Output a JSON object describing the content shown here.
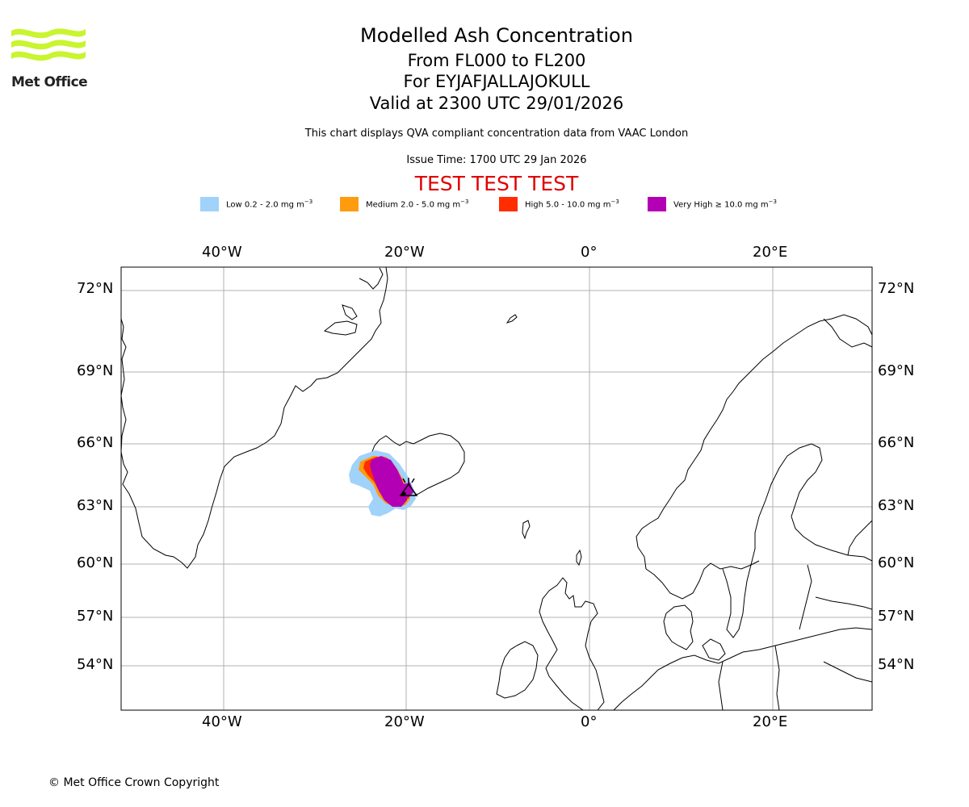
{
  "logo": {
    "text": "Met Office",
    "color": "#c8f52e"
  },
  "title": {
    "line1": "Modelled Ash Concentration",
    "line2": "From FL000 to FL200",
    "line3": "For EYJAFJALLAJOKULL",
    "line4": "Valid at 2300 UTC 29/01/2026"
  },
  "subtitle": "This chart displays QVA compliant concentration data from VAAC London",
  "issue_time": "Issue Time: 1700 UTC 29 Jan 2026",
  "test_banner": "TEST TEST TEST",
  "legend": [
    {
      "label": "Low 0.2 - 2.0 mg m",
      "color": "#a0d2fa"
    },
    {
      "label": "Medium 2.0 - 5.0 mg m",
      "color": "#ff9b0f"
    },
    {
      "label": "High 5.0 - 10.0 mg m",
      "color": "#ff2d00"
    },
    {
      "label": "Very High ≥ 10.0 mg m",
      "color": "#b400b4"
    }
  ],
  "legend_unit_exp": "−3",
  "map": {
    "lon_labels": [
      "40°W",
      "20°W",
      "0°",
      "20°E"
    ],
    "lat_labels": [
      "72°N",
      "69°N",
      "66°N",
      "63°N",
      "60°N",
      "57°N",
      "54°N"
    ],
    "volcano_icon": "volcano-icon"
  },
  "copyright": "© Met Office Crown Copyright"
}
